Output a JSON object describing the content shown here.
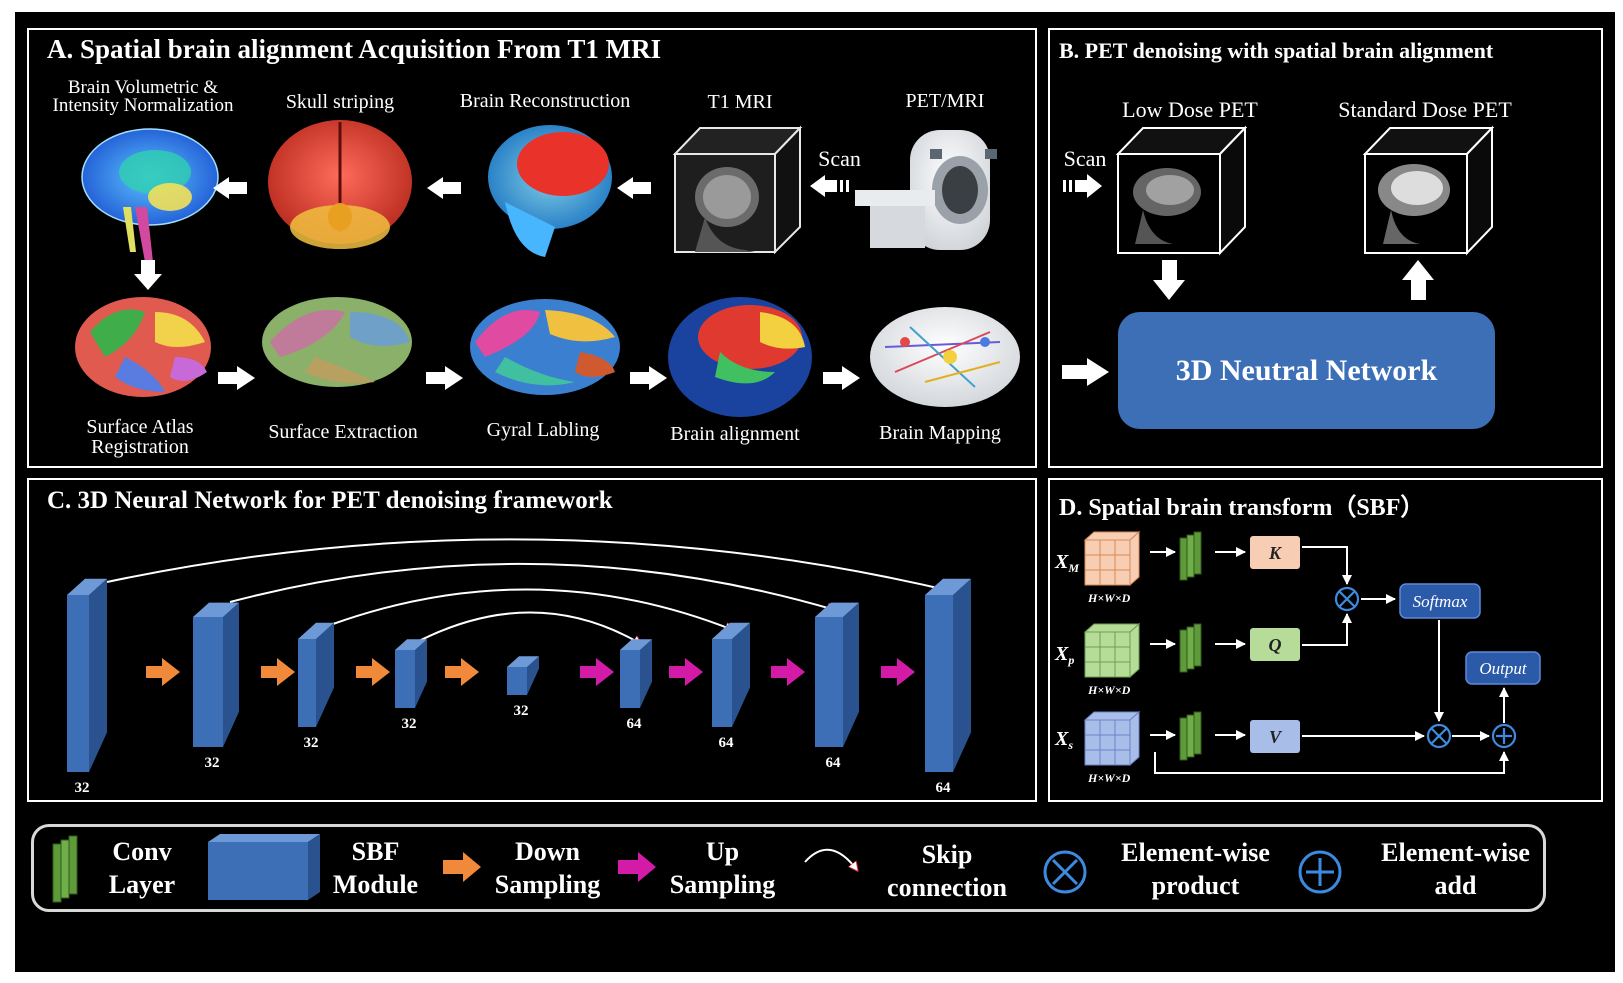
{
  "panel_a": {
    "title": "A. Spatial brain alignment Acquisition From T1 MRI",
    "row1": [
      {
        "label": "Brain Volumetric &\nIntensity Normalization"
      },
      {
        "label": "Skull striping"
      },
      {
        "label": "Brain Reconstruction"
      },
      {
        "label": "T1 MRI"
      },
      {
        "label": "PET/MRI"
      }
    ],
    "scan_label": "Scan",
    "row2": [
      {
        "label": "Surface Atlas\nRegistration"
      },
      {
        "label": "Surface Extraction"
      },
      {
        "label": "Gyral Labling"
      },
      {
        "label": "Brain alignment"
      },
      {
        "label": "Brain Mapping"
      }
    ]
  },
  "panel_b": {
    "title": "B. PET denoising with spatial brain alignment",
    "low_dose": "Low Dose PET",
    "standard_dose": "Standard Dose PET",
    "scan_label": "Scan",
    "network": "3D Neutral Network"
  },
  "panel_c": {
    "title": "C. 3D Neural Network for PET denoising  framework",
    "block_labels": [
      "32",
      "32",
      "32",
      "32",
      "32",
      "64",
      "64",
      "64",
      "64"
    ]
  },
  "panel_d": {
    "title": "D. Spatial brain transform（SBF）",
    "inputs": [
      "X",
      "X",
      "X"
    ],
    "input_subscripts": [
      "M",
      "p",
      "s"
    ],
    "dims": "H×W×D",
    "k": "K",
    "q": "Q",
    "v": "V",
    "softmax": "Softmax",
    "output": "Output"
  },
  "legend": {
    "conv": "Conv\nLayer",
    "sbf": "SBF\nModule",
    "down": "Down\nSampling",
    "up": "Up\nSampling",
    "skip": "Skip\nconnection",
    "product": "Element-wise\nproduct",
    "add": "Element-wise\nadd"
  },
  "colors": {
    "block_front": "#3d6fb6",
    "block_top": "#6d9ad6",
    "block_side": "#2a528f",
    "down_arrow": "#f08a3a",
    "up_arrow": "#d31ba7",
    "network_box": "#3d6fb6",
    "k_box": "#f7cdb3",
    "q_box": "#b7dc99",
    "v_box": "#a8bde8",
    "conv_green": "#5f9a3a"
  }
}
